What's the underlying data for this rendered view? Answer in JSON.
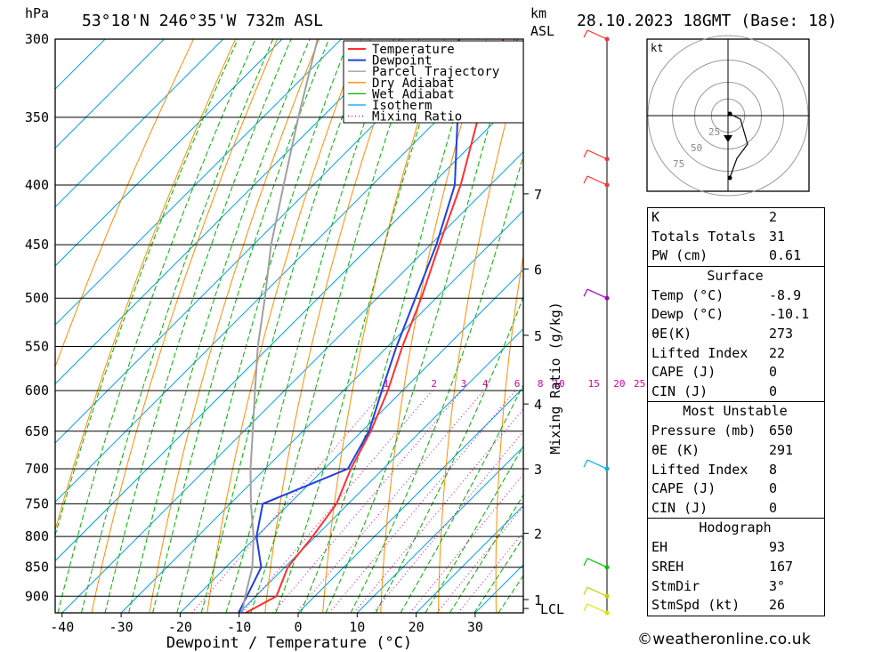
{
  "header": {
    "location": "53°18'N 246°35'W 732m ASL",
    "datetime": "28.10.2023 18GMT (Base: 18)",
    "left_unit": "hPa",
    "km_label": "km",
    "asl_label": "ASL"
  },
  "chart_data": {
    "type": "line",
    "title": "53°18'N 246°35'W 732m ASL",
    "xlabel": "Dewpoint / Temperature (°C)",
    "ylabel": "hPa",
    "y2label": "Mixing Ratio (g/kg)",
    "xlim": [
      -42,
      38
    ],
    "ylim": [
      930,
      300
    ],
    "pressure_ticks": [
      300,
      350,
      400,
      450,
      500,
      550,
      600,
      650,
      700,
      750,
      800,
      850,
      900
    ],
    "temp_ticks": [
      -40,
      -30,
      -20,
      -10,
      0,
      10,
      20,
      30
    ],
    "km_ticks": [
      {
        "label": "7",
        "p": 407
      },
      {
        "label": "6",
        "p": 472
      },
      {
        "label": "5",
        "p": 538
      },
      {
        "label": "4",
        "p": 616
      },
      {
        "label": "3",
        "p": 700
      },
      {
        "label": "2",
        "p": 795
      },
      {
        "label": "1",
        "p": 906
      },
      {
        "label": "LCL",
        "p": 922
      }
    ],
    "mixing_ratio_labels": [
      "1",
      "2",
      "3",
      "4",
      "6",
      "8",
      "10",
      "15",
      "20",
      "25"
    ],
    "legend": {
      "placement": "top-center",
      "entries": [
        "Temperature",
        "Dewpoint",
        "Parcel Trajectory",
        "Dry Adiabat",
        "Wet Adiabat",
        "Isotherm",
        "Mixing Ratio"
      ]
    },
    "series": [
      {
        "name": "Temperature",
        "points": [
          [
            930,
            -8.9
          ],
          [
            900,
            -6.5
          ],
          [
            850,
            -9.5
          ],
          [
            800,
            -10.5
          ],
          [
            750,
            -12.0
          ],
          [
            700,
            -15.5
          ],
          [
            650,
            -18.5
          ],
          [
            600,
            -22.5
          ],
          [
            550,
            -27.5
          ],
          [
            500,
            -32.5
          ],
          [
            450,
            -38.5
          ],
          [
            400,
            -45.0
          ],
          [
            350,
            -53.5
          ],
          [
            300,
            -62.5
          ]
        ]
      },
      {
        "name": "Dewpoint",
        "points": [
          [
            930,
            -10.1
          ],
          [
            900,
            -11.5
          ],
          [
            850,
            -14.0
          ],
          [
            800,
            -20.0
          ],
          [
            750,
            -24.5
          ],
          [
            700,
            -16.0
          ],
          [
            650,
            -18.8
          ],
          [
            600,
            -23.5
          ],
          [
            550,
            -28.5
          ],
          [
            500,
            -33.5
          ],
          [
            450,
            -39.0
          ],
          [
            400,
            -46.0
          ],
          [
            350,
            -57.0
          ],
          [
            300,
            -70.0
          ]
        ]
      },
      {
        "name": "Parcel Trajectory",
        "points": [
          [
            930,
            -9.5
          ],
          [
            900,
            -11.8
          ],
          [
            850,
            -15.5
          ],
          [
            800,
            -20.5
          ],
          [
            750,
            -26.5
          ],
          [
            700,
            -32.5
          ],
          [
            650,
            -38.5
          ],
          [
            600,
            -45.0
          ],
          [
            550,
            -52.0
          ],
          [
            500,
            -59.0
          ],
          [
            450,
            -67.0
          ],
          [
            400,
            -75.0
          ],
          [
            350,
            -84.0
          ],
          [
            300,
            -94.0
          ]
        ]
      }
    ],
    "colors": {
      "temperature": "#ff3030",
      "dewpoint": "#2040e0",
      "parcel": "#a0a0a0",
      "dry_adiabat": "#ff8c00",
      "wet_adiabat": "#00b000",
      "isotherm": "#00a0e8",
      "mixing_ratio": "#d000a0"
    },
    "wind_profile": [
      {
        "p": 300,
        "color": "#ff3030"
      },
      {
        "p": 380,
        "color": "#ff3030"
      },
      {
        "p": 400,
        "color": "#ff3030"
      },
      {
        "p": 500,
        "color": "#a000c0"
      },
      {
        "p": 700,
        "color": "#00b0e0"
      },
      {
        "p": 850,
        "color": "#00c000"
      },
      {
        "p": 900,
        "color": "#c8d000"
      },
      {
        "p": 930,
        "color": "#e0e000"
      }
    ]
  },
  "hodograph": {
    "unit": "kt",
    "ring_labels": [
      "25",
      "50",
      "75"
    ]
  },
  "indices": [
    {
      "label": "K",
      "value": "2"
    },
    {
      "label": "Totals Totals",
      "value": "31"
    },
    {
      "label": "PW (cm)",
      "value": "0.61"
    }
  ],
  "surface": {
    "title": "Surface",
    "rows": [
      {
        "label": "Temp (°C)",
        "value": "-8.9"
      },
      {
        "label": "Dewp (°C)",
        "value": "-10.1"
      },
      {
        "label": "θE(K)",
        "value": "273"
      },
      {
        "label": "Lifted Index",
        "value": "22"
      },
      {
        "label": "CAPE (J)",
        "value": "0"
      },
      {
        "label": "CIN (J)",
        "value": "0"
      }
    ]
  },
  "most_unstable": {
    "title": "Most Unstable",
    "rows": [
      {
        "label": "Pressure (mb)",
        "value": "650"
      },
      {
        "label": "θE (K)",
        "value": "291"
      },
      {
        "label": "Lifted Index",
        "value": "8"
      },
      {
        "label": "CAPE (J)",
        "value": "0"
      },
      {
        "label": "CIN (J)",
        "value": "0"
      }
    ]
  },
  "hodograph_stats": {
    "title": "Hodograph",
    "rows": [
      {
        "label": "EH",
        "value": "93"
      },
      {
        "label": "SREH",
        "value": "167"
      },
      {
        "label": "StmDir",
        "value": "3°"
      },
      {
        "label": "StmSpd (kt)",
        "value": "26"
      }
    ]
  },
  "footer": "©weatheronline.co.uk"
}
